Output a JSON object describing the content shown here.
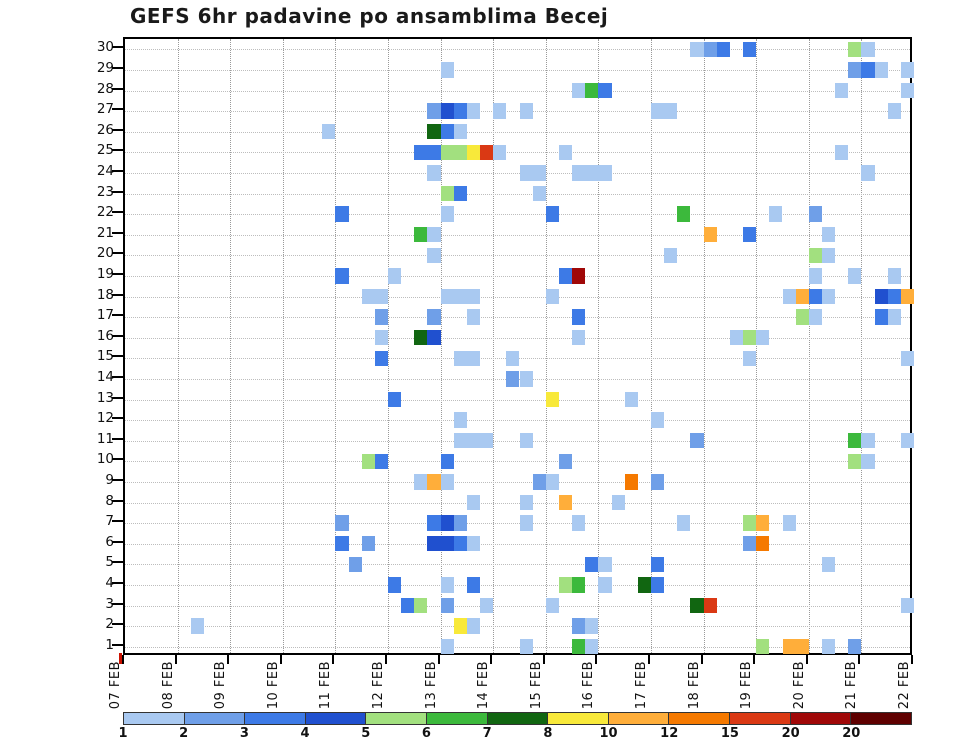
{
  "title": "GEFS 6hr padavine po ansamblima Becej",
  "chart_data": {
    "type": "heatmap",
    "title": "GEFS 6hr padavine po ansamblima Becej",
    "x_dates": [
      "07 FEB",
      "08 FEB",
      "09 FEB",
      "10 FEB",
      "11 FEB",
      "12 FEB",
      "13 FEB",
      "14 FEB",
      "15 FEB",
      "16 FEB",
      "17 FEB",
      "18 FEB",
      "19 FEB",
      "20 FEB",
      "21 FEB",
      "22 FEB"
    ],
    "steps_per_day": 4,
    "n_steps": 60,
    "members": [
      "30",
      "29",
      "28",
      "27",
      "26",
      "25",
      "24",
      "23",
      "22",
      "21",
      "20",
      "19",
      "18",
      "17",
      "16",
      "15",
      "14",
      "13",
      "12",
      "11",
      "10",
      "9",
      "8",
      "7",
      "6",
      "5",
      "4",
      "3",
      "2",
      "1"
    ],
    "grid": "dotted",
    "legend": {
      "labels": [
        "1",
        "2",
        "3",
        "4",
        "5",
        "6",
        "7",
        "8",
        "10",
        "12",
        "15",
        "20",
        "20"
      ],
      "colors": [
        "#a9c9f1",
        "#6f9fe8",
        "#3d7ae6",
        "#2050cf",
        "#a2e07f",
        "#3cb93c",
        "#116611",
        "#f8e93a",
        "#ffae3a",
        "#f57900",
        "#da3914",
        "#a00808",
        "#5f0000"
      ]
    },
    "value_colors": {
      "1": "#a9c9f1",
      "2": "#6f9fe8",
      "3": "#3d7ae6",
      "4": "#2050cf",
      "5": "#a2e07f",
      "6": "#3cb93c",
      "7": "#116611",
      "8": "#f8e93a",
      "10": "#ffae3a",
      "12": "#f57900",
      "15": "#da3914",
      "20": "#a00808"
    },
    "cells": [
      [
        30,
        43,
        1
      ],
      [
        30,
        44,
        2
      ],
      [
        30,
        45,
        3
      ],
      [
        30,
        47,
        3
      ],
      [
        30,
        55,
        5
      ],
      [
        30,
        56,
        1
      ],
      [
        29,
        24,
        1
      ],
      [
        29,
        55,
        2
      ],
      [
        29,
        56,
        3
      ],
      [
        29,
        57,
        1
      ],
      [
        29,
        59,
        1
      ],
      [
        28,
        34,
        1
      ],
      [
        28,
        35,
        6
      ],
      [
        28,
        36,
        3
      ],
      [
        28,
        54,
        1
      ],
      [
        28,
        59,
        1
      ],
      [
        27,
        23,
        2
      ],
      [
        27,
        24,
        4
      ],
      [
        27,
        25,
        3
      ],
      [
        27,
        26,
        1
      ],
      [
        27,
        28,
        1
      ],
      [
        27,
        30,
        1
      ],
      [
        27,
        40,
        1
      ],
      [
        27,
        41,
        1
      ],
      [
        27,
        58,
        1
      ],
      [
        26,
        15,
        1
      ],
      [
        26,
        23,
        7
      ],
      [
        26,
        24,
        3
      ],
      [
        26,
        25,
        1
      ],
      [
        25,
        22,
        3
      ],
      [
        25,
        23,
        3
      ],
      [
        25,
        24,
        5
      ],
      [
        25,
        25,
        5
      ],
      [
        25,
        26,
        8
      ],
      [
        25,
        27,
        15
      ],
      [
        25,
        28,
        1
      ],
      [
        25,
        33,
        1
      ],
      [
        25,
        54,
        1
      ],
      [
        24,
        23,
        1
      ],
      [
        24,
        30,
        1
      ],
      [
        24,
        31,
        1
      ],
      [
        24,
        34,
        1
      ],
      [
        24,
        35,
        1
      ],
      [
        24,
        36,
        1
      ],
      [
        24,
        56,
        1
      ],
      [
        23,
        24,
        5
      ],
      [
        23,
        25,
        3
      ],
      [
        23,
        31,
        1
      ],
      [
        22,
        16,
        3
      ],
      [
        22,
        24,
        1
      ],
      [
        22,
        32,
        3
      ],
      [
        22,
        42,
        6
      ],
      [
        22,
        49,
        1
      ],
      [
        22,
        52,
        2
      ],
      [
        21,
        22,
        6
      ],
      [
        21,
        23,
        1
      ],
      [
        21,
        44,
        10
      ],
      [
        21,
        47,
        3
      ],
      [
        21,
        53,
        1
      ],
      [
        20,
        23,
        1
      ],
      [
        20,
        41,
        1
      ],
      [
        20,
        52,
        5
      ],
      [
        20,
        53,
        1
      ],
      [
        19,
        16,
        3
      ],
      [
        19,
        20,
        1
      ],
      [
        19,
        33,
        3
      ],
      [
        19,
        34,
        20
      ],
      [
        19,
        52,
        1
      ],
      [
        19,
        55,
        1
      ],
      [
        19,
        58,
        1
      ],
      [
        18,
        18,
        1
      ],
      [
        18,
        19,
        1
      ],
      [
        18,
        24,
        1
      ],
      [
        18,
        25,
        1
      ],
      [
        18,
        26,
        1
      ],
      [
        18,
        32,
        1
      ],
      [
        18,
        50,
        1
      ],
      [
        18,
        51,
        10
      ],
      [
        18,
        52,
        3
      ],
      [
        18,
        53,
        1
      ],
      [
        18,
        57,
        4
      ],
      [
        18,
        58,
        3
      ],
      [
        18,
        59,
        10
      ],
      [
        17,
        19,
        2
      ],
      [
        17,
        23,
        2
      ],
      [
        17,
        26,
        1
      ],
      [
        17,
        34,
        3
      ],
      [
        17,
        51,
        5
      ],
      [
        17,
        52,
        1
      ],
      [
        17,
        57,
        3
      ],
      [
        17,
        58,
        1
      ],
      [
        16,
        19,
        1
      ],
      [
        16,
        22,
        7
      ],
      [
        16,
        23,
        4
      ],
      [
        16,
        34,
        1
      ],
      [
        16,
        46,
        1
      ],
      [
        16,
        47,
        5
      ],
      [
        16,
        48,
        1
      ],
      [
        15,
        19,
        3
      ],
      [
        15,
        25,
        1
      ],
      [
        15,
        26,
        1
      ],
      [
        15,
        29,
        1
      ],
      [
        15,
        47,
        1
      ],
      [
        15,
        59,
        1
      ],
      [
        14,
        29,
        2
      ],
      [
        14,
        30,
        1
      ],
      [
        13,
        20,
        3
      ],
      [
        13,
        32,
        8
      ],
      [
        13,
        38,
        1
      ],
      [
        12,
        25,
        1
      ],
      [
        12,
        40,
        1
      ],
      [
        11,
        25,
        1
      ],
      [
        11,
        26,
        1
      ],
      [
        11,
        27,
        1
      ],
      [
        11,
        30,
        1
      ],
      [
        11,
        43,
        2
      ],
      [
        11,
        55,
        6
      ],
      [
        11,
        56,
        1
      ],
      [
        11,
        59,
        1
      ],
      [
        10,
        18,
        5
      ],
      [
        10,
        19,
        3
      ],
      [
        10,
        24,
        3
      ],
      [
        10,
        33,
        2
      ],
      [
        10,
        55,
        5
      ],
      [
        10,
        56,
        1
      ],
      [
        9,
        22,
        1
      ],
      [
        9,
        23,
        10
      ],
      [
        9,
        24,
        1
      ],
      [
        9,
        31,
        2
      ],
      [
        9,
        32,
        1
      ],
      [
        9,
        38,
        12
      ],
      [
        9,
        40,
        2
      ],
      [
        8,
        26,
        1
      ],
      [
        8,
        30,
        1
      ],
      [
        8,
        33,
        10
      ],
      [
        8,
        37,
        1
      ],
      [
        7,
        16,
        2
      ],
      [
        7,
        23,
        3
      ],
      [
        7,
        24,
        4
      ],
      [
        7,
        25,
        2
      ],
      [
        7,
        30,
        1
      ],
      [
        7,
        34,
        1
      ],
      [
        7,
        42,
        1
      ],
      [
        7,
        47,
        5
      ],
      [
        7,
        48,
        10
      ],
      [
        7,
        50,
        1
      ],
      [
        6,
        16,
        3
      ],
      [
        6,
        18,
        2
      ],
      [
        6,
        23,
        4
      ],
      [
        6,
        24,
        4
      ],
      [
        6,
        25,
        3
      ],
      [
        6,
        26,
        1
      ],
      [
        6,
        47,
        2
      ],
      [
        6,
        48,
        12
      ],
      [
        5,
        17,
        2
      ],
      [
        5,
        35,
        3
      ],
      [
        5,
        36,
        1
      ],
      [
        5,
        40,
        3
      ],
      [
        5,
        53,
        1
      ],
      [
        4,
        20,
        3
      ],
      [
        4,
        24,
        1
      ],
      [
        4,
        26,
        3
      ],
      [
        4,
        33,
        5
      ],
      [
        4,
        34,
        6
      ],
      [
        4,
        36,
        1
      ],
      [
        4,
        39,
        7
      ],
      [
        4,
        40,
        3
      ],
      [
        3,
        21,
        3
      ],
      [
        3,
        22,
        5
      ],
      [
        3,
        24,
        2
      ],
      [
        3,
        27,
        1
      ],
      [
        3,
        32,
        1
      ],
      [
        3,
        43,
        7
      ],
      [
        3,
        44,
        15
      ],
      [
        3,
        59,
        1
      ],
      [
        2,
        5,
        1
      ],
      [
        2,
        25,
        8
      ],
      [
        2,
        26,
        1
      ],
      [
        2,
        34,
        2
      ],
      [
        2,
        35,
        1
      ],
      [
        1,
        24,
        1
      ],
      [
        1,
        30,
        1
      ],
      [
        1,
        34,
        6
      ],
      [
        1,
        35,
        1
      ],
      [
        1,
        48,
        5
      ],
      [
        1,
        50,
        10
      ],
      [
        1,
        51,
        10
      ],
      [
        1,
        53,
        1
      ],
      [
        1,
        55,
        2
      ]
    ]
  }
}
